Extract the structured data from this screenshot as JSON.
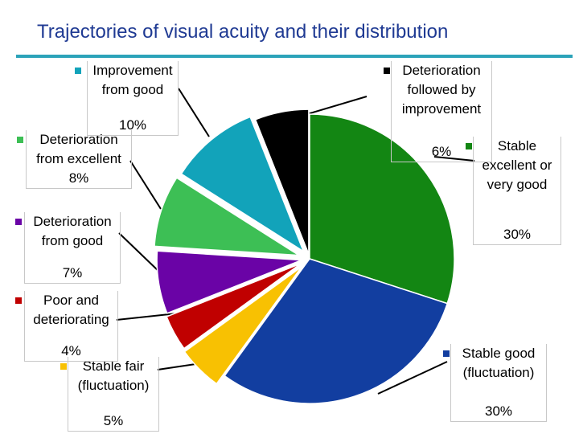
{
  "chart_data": {
    "type": "pie",
    "title": "Trajectories of visual acuity and their distribution",
    "unit": "%",
    "slices": [
      {
        "name": "Stable excellent or very good",
        "value": 30,
        "label": "30%",
        "color": "#138613"
      },
      {
        "name": "Stable good (fluctuation)",
        "value": 30,
        "label": "30%",
        "color": "#123ea0"
      },
      {
        "name": "Stable fair (fluctuation)",
        "value": 5,
        "label": "5%",
        "color": "#f8c102"
      },
      {
        "name": "Poor and deteriorating",
        "value": 4,
        "label": "4%",
        "color": "#c00000"
      },
      {
        "name": "Deterioration from good",
        "value": 7,
        "label": "7%",
        "color": "#6a03a6"
      },
      {
        "name": "Deterioration from excellent",
        "value": 8,
        "label": "8%",
        "color": "#3dbf55"
      },
      {
        "name": "Improvement from good",
        "value": 10,
        "label": "10%",
        "color": "#12a3ba"
      },
      {
        "name": "Deterioration followed by improvement",
        "value": 6,
        "label": "6%",
        "color": "#000000"
      }
    ],
    "legend": "labels beside slices",
    "label_text": [
      "Stable\nexcellent or\nvery good",
      "Stable good\n(fluctuation)",
      "Stable fair\n(fluctuation)",
      "Poor and\ndeteriorating",
      "Deterioration\nfrom good",
      "Deterioration\nfrom excellent",
      "Improvement\nfrom good",
      "Deterioration\nfollowed by\nimprovement"
    ]
  }
}
